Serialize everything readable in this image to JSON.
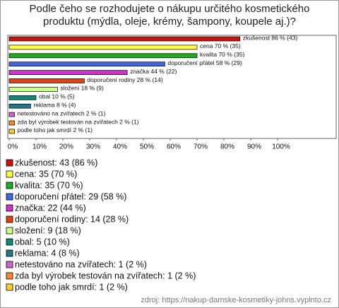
{
  "chart_data": {
    "type": "hbar",
    "title": "Podle čeho se rozhodujete o nákupu určitého kosmetického produktu (mýdla, oleje, krémy, šampony, koupele aj.)?",
    "categories": [
      "zkušenost",
      "cena",
      "kvalita",
      "doporučení přátel",
      "značka",
      "doporučení rodiny",
      "složení",
      "obal",
      "reklama",
      "netestováno na zvířatech",
      "zda byl výrobek testován na zvířatech",
      "podle toho jak smrdí"
    ],
    "values": [
      86,
      70,
      70,
      58,
      44,
      28,
      18,
      10,
      8,
      2,
      2,
      2
    ],
    "value_labels": [
      "zkušenost 86 % (43)",
      "cena 70 % (35)",
      "kvalita 70 % (35)",
      "doporučení přátel 58 % (29)",
      "značka 44 % (22)",
      "doporučení rodiny 28 % (14)",
      "složení 18 % (9)",
      "obal 10 % (5)",
      "reklama 8 % (4)",
      "netestováno na zvířatech 2 % (1)",
      "zda byl výrobek testován na zvířatech 2 % (1)",
      "podle toho jak smrdí 2 % (1)"
    ],
    "legend": [
      "zkušenost: 43 (86 %)",
      "cena: 35 (70 %)",
      "kvalita: 35 (70 %)",
      "doporučení přátel: 29 (58 %)",
      "značka: 22 (44 %)",
      "doporučení rodiny: 14 (28 %)",
      "složení: 9 (18 %)",
      "obal: 5 (10 %)",
      "reklama: 4 (8 %)",
      "netestováno na zvířatech: 1 (2 %)",
      "zda byl výrobek testován na zvířatech: 1 (2 %)",
      "podle toho jak smrdí: 1 (2 %)"
    ],
    "colors": [
      "#cc1111",
      "#ffff44",
      "#22aa22",
      "#4466dd",
      "#cc33cc",
      "#dd4411",
      "#ccff88",
      "#118877",
      "#227788",
      "#cc66cc",
      "#ff8833",
      "#ffcc33"
    ],
    "xlim": [
      0,
      100
    ],
    "xticks": [
      {
        "value": 0,
        "label": "0%"
      },
      {
        "value": 10,
        "label": "10%"
      },
      {
        "value": 20,
        "label": "20%"
      },
      {
        "value": 30,
        "label": "30%"
      },
      {
        "value": 40,
        "label": "40%"
      },
      {
        "value": 50,
        "label": "50%"
      },
      {
        "value": 60,
        "label": "60%"
      },
      {
        "value": 70,
        "label": "70%"
      },
      {
        "value": 80,
        "label": "80%"
      },
      {
        "value": 90,
        "label": "90%"
      },
      {
        "value": 100,
        "label": "100%"
      }
    ],
    "source": "zdroj: https://nakup-damske-kosmetiky-johns.vyplnto.cz"
  }
}
